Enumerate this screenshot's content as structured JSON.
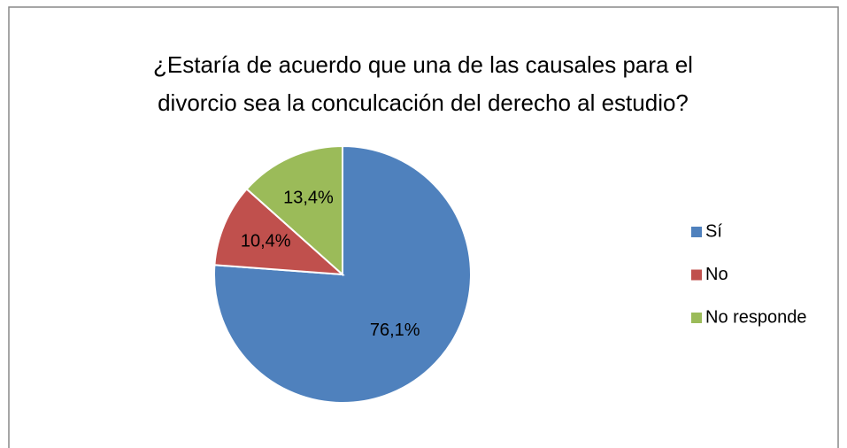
{
  "chart_data": {
    "type": "pie",
    "title": [
      "¿Estaría de acuerdo que una de las causales para el",
      "divorcio sea la conculcación del derecho al estudio?"
    ],
    "categories": [
      "Sí",
      "No",
      "No responde"
    ],
    "values": [
      76.1,
      10.4,
      13.4
    ],
    "value_labels": [
      "76,1%",
      "10,4%",
      "13,4%"
    ],
    "colors": [
      "#4f81bd",
      "#c0504d",
      "#9bbb59"
    ],
    "legend": "right"
  }
}
